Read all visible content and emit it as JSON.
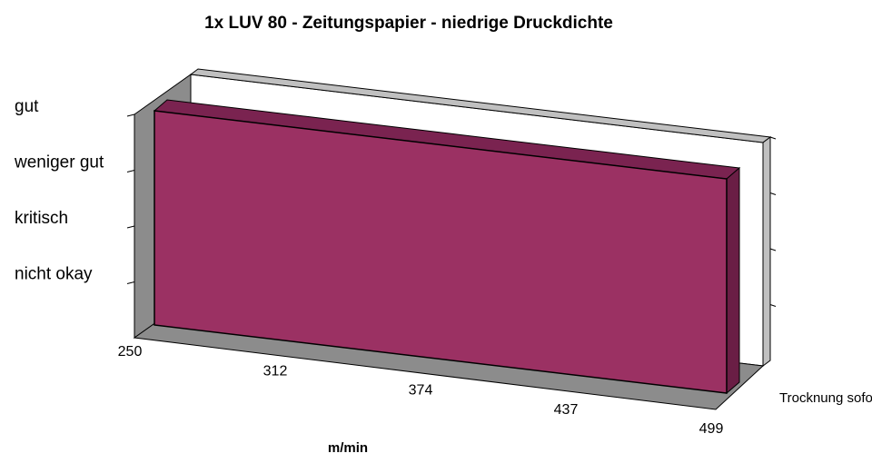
{
  "chart_data": {
    "type": "area3d",
    "title": "1x LUV 80 - Zeitungspapier - niedrige Druckdichte",
    "x_label": "m/min",
    "categories": [
      "250",
      "312",
      "374",
      "437",
      "499"
    ],
    "series": [
      {
        "name": "Trocknung sofort",
        "color": "#9b3163",
        "values": [
          4,
          4,
          4,
          4,
          4
        ]
      }
    ],
    "ylim": [
      0,
      4
    ],
    "yticks": [
      {
        "value": 1,
        "label": "nicht okay"
      },
      {
        "value": 2,
        "label": "kritisch"
      },
      {
        "value": 3,
        "label": "weniger gut"
      },
      {
        "value": 4,
        "label": "gut"
      }
    ]
  }
}
